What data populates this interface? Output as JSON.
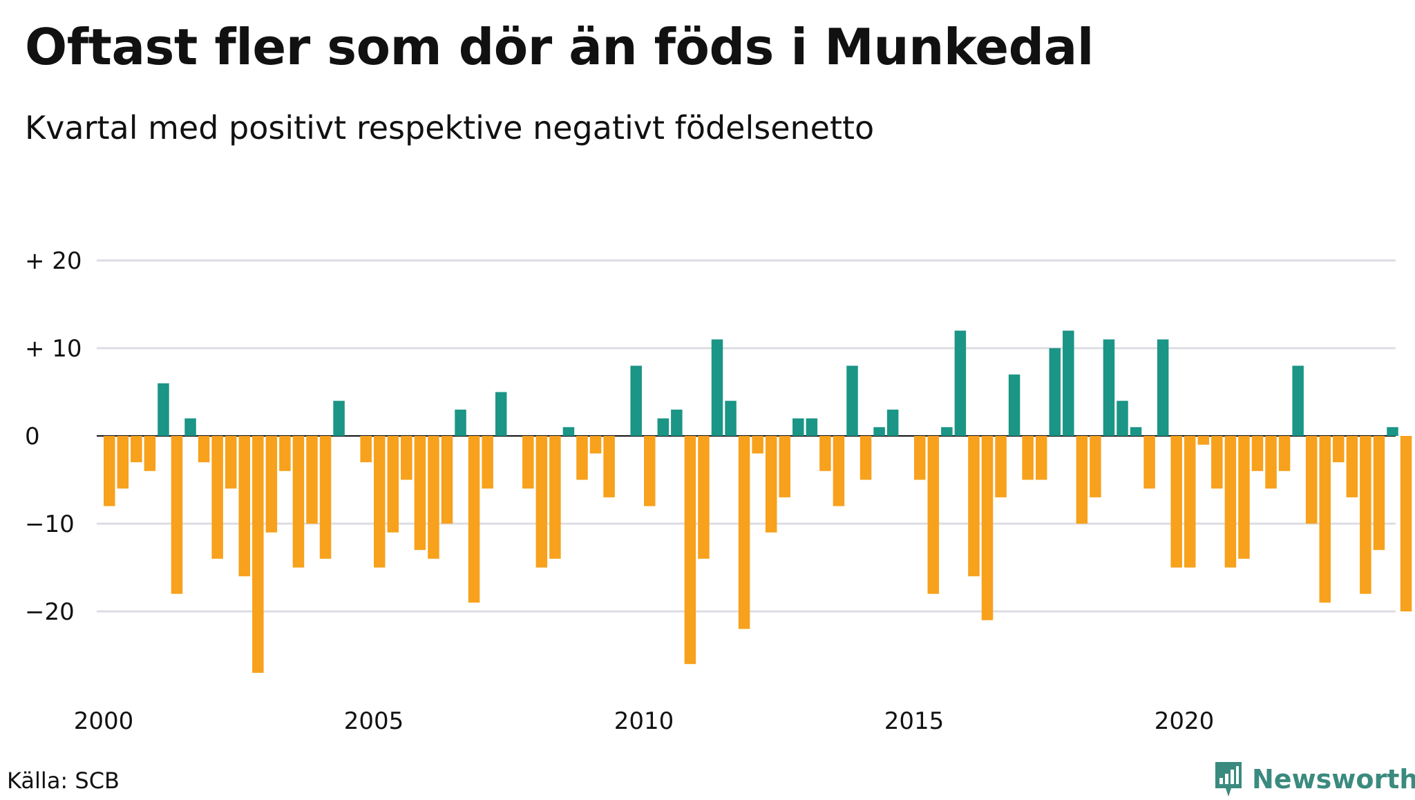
{
  "chart_data": {
    "type": "bar",
    "title": "Oftast fler som dör än föds i Munkedal",
    "subtitle": "Kvartal med positivt respektive negativt födelsenetto",
    "xlabel": "",
    "ylabel": "",
    "x_tick_labels": [
      "2000",
      "2005",
      "2010",
      "2015",
      "2020"
    ],
    "y_ticks": [
      {
        "value": 20,
        "label": "+ 20"
      },
      {
        "value": 10,
        "label": "+ 10"
      },
      {
        "value": 0,
        "label": "0"
      },
      {
        "value": -10,
        "label": "−10"
      },
      {
        "value": -20,
        "label": "−20"
      }
    ],
    "ylim": [
      -28,
      20
    ],
    "x_start_year": 2000,
    "periods_per_year": 4,
    "grid": true,
    "positive_color": "#1b9585",
    "negative_color": "#f7a11c",
    "gridline_color": "#dcdde3",
    "values": [
      -8,
      -6,
      -3,
      -4,
      6,
      -18,
      2,
      -3,
      -14,
      -6,
      -16,
      -27,
      -11,
      -4,
      -15,
      -10,
      -14,
      4,
      0,
      -3,
      -15,
      -11,
      -5,
      -13,
      -14,
      -10,
      3,
      -19,
      -6,
      5,
      0,
      -6,
      -15,
      -14,
      1,
      -5,
      -2,
      -7,
      0,
      8,
      -8,
      2,
      3,
      -26,
      -14,
      11,
      4,
      -22,
      -2,
      -11,
      -7,
      2,
      2,
      -4,
      -8,
      8,
      -5,
      1,
      3,
      0,
      -5,
      -18,
      1,
      12,
      -16,
      -21,
      -7,
      7,
      -5,
      -5,
      10,
      12,
      -10,
      -7,
      11,
      4,
      1,
      -6,
      11,
      -15,
      -15,
      -1,
      -6,
      -15,
      -14,
      -4,
      -6,
      -4,
      8,
      -10,
      -19,
      -3,
      -7,
      -18,
      -13,
      1,
      -20
    ]
  },
  "source": "Källa: SCB",
  "brand": {
    "name": "Newsworthy",
    "icon": "newsworthy-logo-icon",
    "color": "#3b8a7f"
  }
}
